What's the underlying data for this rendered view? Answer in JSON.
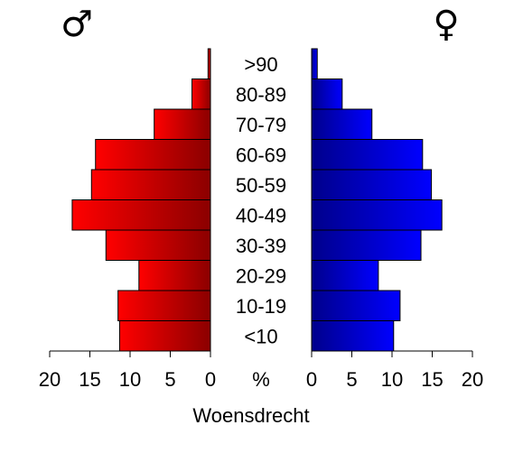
{
  "chart_data": {
    "type": "bar",
    "title": "",
    "caption": "Woensdrecht",
    "center_axis_label": "%",
    "male_symbol": "♂",
    "female_symbol": "♀",
    "categories": [
      "<10",
      "10-19",
      "20-29",
      "30-39",
      "40-49",
      "50-59",
      "60-69",
      "70-79",
      "80-89",
      ">90"
    ],
    "series": [
      {
        "side": "male",
        "values": [
          11.3,
          11.5,
          8.9,
          13.0,
          17.2,
          14.8,
          14.3,
          7.0,
          2.3,
          0.3
        ]
      },
      {
        "side": "female",
        "values": [
          10.2,
          11.0,
          8.3,
          13.6,
          16.2,
          14.9,
          13.8,
          7.5,
          3.8,
          0.7
        ]
      }
    ],
    "xlim": [
      0,
      20
    ],
    "ticks": [
      0,
      5,
      10,
      15,
      20
    ],
    "colors": {
      "male_light": "#ff0000",
      "male_dark": "#8b0000",
      "female_light": "#0000ff",
      "female_dark": "#00008b"
    }
  }
}
